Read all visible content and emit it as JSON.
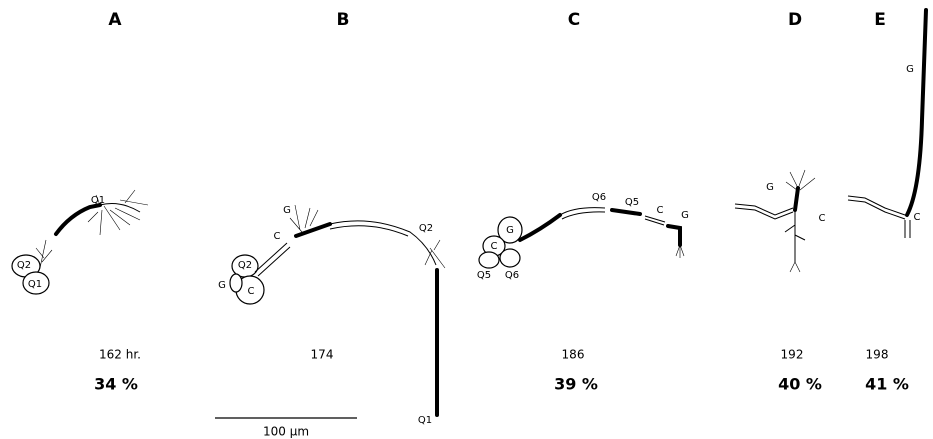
{
  "scale_bar": "100 μm",
  "panels": [
    {
      "letter": "A",
      "time": "162 hr.",
      "percent": "34 %",
      "labels": [
        "Q1",
        "Q2",
        "Q1"
      ]
    },
    {
      "letter": "B",
      "time": "174",
      "labels": [
        "G",
        "C",
        "Q2",
        "Q2",
        "G",
        "C",
        "Q1"
      ]
    },
    {
      "letter": "C",
      "time": "186",
      "percent": "39 %",
      "labels": [
        "Q6",
        "Q5",
        "C",
        "G",
        "G",
        "C",
        "Q5",
        "Q6"
      ]
    },
    {
      "letter": "D",
      "time": "192",
      "percent": "40 %",
      "labels": [
        "G",
        "C"
      ]
    },
    {
      "letter": "E",
      "time": "198",
      "percent": "41 %",
      "labels": [
        "G",
        "C"
      ]
    }
  ]
}
